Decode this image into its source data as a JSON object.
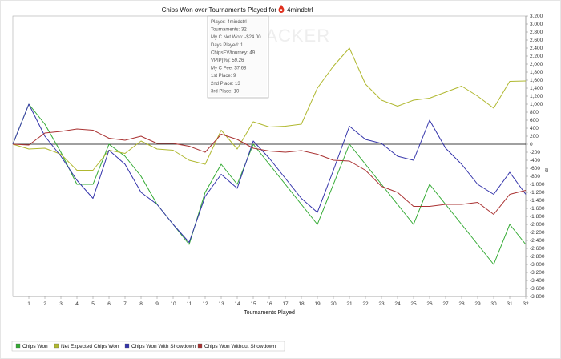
{
  "chart_data": {
    "type": "line",
    "title": "Chips Won over Tournaments Played for",
    "player_name": "4mindctrl",
    "xlabel": "Tournaments Played",
    "ylabel": "",
    "x": [
      0,
      1,
      2,
      3,
      4,
      5,
      6,
      7,
      8,
      9,
      10,
      11,
      12,
      13,
      14,
      15,
      16,
      17,
      18,
      19,
      20,
      21,
      22,
      23,
      24,
      25,
      26,
      27,
      28,
      29,
      30,
      31,
      32
    ],
    "x_tick_labels": [
      "1",
      "2",
      "3",
      "4",
      "5",
      "6",
      "7",
      "8",
      "9",
      "10",
      "11",
      "12",
      "13",
      "14",
      "15",
      "16",
      "17",
      "18",
      "19",
      "20",
      "21",
      "22",
      "23",
      "24",
      "25",
      "26",
      "27",
      "28",
      "29",
      "30",
      "31",
      "32"
    ],
    "ylim": [
      -3800,
      3200
    ],
    "y_ticks": [
      "3,200",
      "3,000",
      "2,800",
      "2,600",
      "2,400",
      "2,200",
      "2,000",
      "1,800",
      "1,600",
      "1,400",
      "1,200",
      "1,000",
      "800",
      "600",
      "400",
      "200",
      "0",
      "-200",
      "-400",
      "-600",
      "-800",
      "-1,000",
      "-1,200",
      "-1,400",
      "-1,600",
      "-1,800",
      "-2,000",
      "-2,200",
      "-2,400",
      "-2,600",
      "-2,800",
      "-3,000",
      "-3,200",
      "-3,400",
      "-3,600",
      "-3,800"
    ],
    "y_tick_values": [
      3200,
      3000,
      2800,
      2600,
      2400,
      2200,
      2000,
      1800,
      1600,
      1400,
      1200,
      1000,
      800,
      600,
      400,
      200,
      0,
      -200,
      -400,
      -600,
      -800,
      -1000,
      -1200,
      -1400,
      -1600,
      -1800,
      -2000,
      -2200,
      -2400,
      -2600,
      -2800,
      -3000,
      -3200,
      -3400,
      -3600,
      -3800
    ],
    "zero_line": true,
    "grid": false,
    "legend_position": "bottom",
    "series": [
      {
        "name": "Chips Won",
        "color": "#33aa33",
        "values": [
          0,
          1000,
          500,
          -200,
          -1000,
          -1000,
          0,
          -300,
          -800,
          -1500,
          -2000,
          -2500,
          -1200,
          -500,
          -1000,
          0,
          -500,
          -1000,
          -1500,
          -2000,
          -1000,
          0,
          -500,
          -1000,
          -1500,
          -2000,
          -1000,
          -1500,
          -2000,
          -2500,
          -3000,
          -2000,
          -2500
        ]
      },
      {
        "name": "Net Expected Chips Won",
        "color": "#b0b830",
        "values": [
          0,
          -120,
          -100,
          -250,
          -650,
          -650,
          -150,
          -230,
          80,
          -120,
          -150,
          -400,
          -500,
          350,
          -120,
          560,
          430,
          450,
          500,
          1400,
          1950,
          2400,
          1500,
          1100,
          950,
          1100,
          1150,
          1300,
          1450,
          1200,
          900,
          1570,
          1580
        ]
      },
      {
        "name": "Chips Won With Showdown",
        "color": "#3333aa",
        "values": [
          0,
          1000,
          200,
          -300,
          -900,
          -1350,
          -150,
          -500,
          -1200,
          -1500,
          -2000,
          -2450,
          -1300,
          -750,
          -1100,
          80,
          -350,
          -850,
          -1350,
          -1700,
          -650,
          450,
          120,
          20,
          -300,
          -400,
          600,
          -100,
          -500,
          -1000,
          -1250,
          -700,
          -1250
        ]
      },
      {
        "name": "Chips Won Without Showdown",
        "color": "#aa3333",
        "values": [
          0,
          -20,
          280,
          320,
          380,
          350,
          150,
          100,
          200,
          20,
          20,
          -50,
          -200,
          250,
          120,
          -100,
          -170,
          -200,
          -160,
          -250,
          -400,
          -420,
          -650,
          -1050,
          -1200,
          -1550,
          -1550,
          -1500,
          -1500,
          -1450,
          -1750,
          -1250,
          -1150
        ]
      }
    ]
  },
  "tooltip": {
    "lines": [
      "Player: 4mindctrl",
      "Tournaments: 32",
      "My C Net Won: -$24.00",
      "Days Played: 1",
      "ChipsEV/tourney: 49",
      "VPIP(%): 59.26",
      "My C Fee: $7.68",
      "1st Place: 9",
      "2nd Place: 13",
      "3rd Place: 10"
    ]
  },
  "watermark": "TRACKER"
}
